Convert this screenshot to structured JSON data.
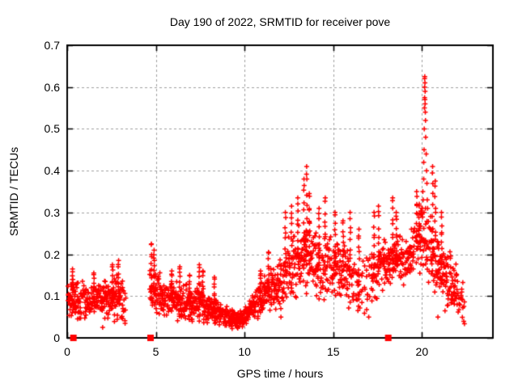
{
  "figure": {
    "title": "Day 190 of 2022, SRMTID for receiver pove",
    "xlabel": "GPS time / hours",
    "ylabel": "SRMTID / TECUs"
  },
  "chart_data": {
    "type": "scatter",
    "title": "Day 190 of 2022, SRMTID for receiver pove",
    "xlabel": "GPS time / hours",
    "ylabel": "SRMTID / TECUs",
    "xlim": [
      0,
      24
    ],
    "ylim": [
      0,
      0.7
    ],
    "xticks": [
      0,
      5,
      10,
      15,
      20
    ],
    "yticks": [
      0,
      0.1,
      0.2,
      0.3,
      0.4,
      0.5,
      0.6,
      0.7
    ],
    "grid": true,
    "legend": "none",
    "colors": {
      "marker": "#ff0000",
      "grid": "#a0a0a0",
      "axis": "#000000",
      "text": "#000000"
    },
    "marker": {
      "shape": "plus",
      "size": 7
    },
    "baseline_markers": {
      "shape": "square",
      "size": 8,
      "y": 0,
      "x": [
        0.35,
        4.7,
        18.1
      ]
    },
    "series_name": "SRMTID",
    "seed": 42,
    "sample_step_hours": 0.018,
    "extra_point_prob": 0.5,
    "coverage": [
      [
        0.05,
        3.3
      ],
      [
        4.65,
        22.45
      ]
    ],
    "envelope_keypoints": [
      [
        0.05,
        0.095,
        0.055,
        1
      ],
      [
        0.6,
        0.09,
        0.05,
        1
      ],
      [
        1.2,
        0.085,
        0.05,
        0.9
      ],
      [
        1.8,
        0.09,
        0.055,
        0.9
      ],
      [
        2.4,
        0.095,
        0.06,
        1
      ],
      [
        2.9,
        0.09,
        0.065,
        1
      ],
      [
        3.3,
        0.08,
        0.05,
        0.7
      ],
      [
        4.65,
        0.12,
        0.08,
        1
      ],
      [
        5.0,
        0.115,
        0.07,
        1
      ],
      [
        5.5,
        0.1,
        0.055,
        1
      ],
      [
        6.0,
        0.09,
        0.05,
        1
      ],
      [
        6.5,
        0.085,
        0.05,
        1
      ],
      [
        7.0,
        0.078,
        0.045,
        1
      ],
      [
        7.5,
        0.082,
        0.05,
        1
      ],
      [
        8.0,
        0.07,
        0.04,
        1
      ],
      [
        8.5,
        0.063,
        0.035,
        1
      ],
      [
        9.0,
        0.052,
        0.028,
        1
      ],
      [
        9.5,
        0.042,
        0.022,
        1
      ],
      [
        9.9,
        0.048,
        0.025,
        1
      ],
      [
        10.3,
        0.065,
        0.035,
        1
      ],
      [
        10.8,
        0.09,
        0.05,
        1
      ],
      [
        11.3,
        0.11,
        0.055,
        1
      ],
      [
        11.8,
        0.12,
        0.06,
        1
      ],
      [
        12.2,
        0.14,
        0.075,
        1
      ],
      [
        12.6,
        0.17,
        0.09,
        1
      ],
      [
        13.0,
        0.19,
        0.1,
        1
      ],
      [
        13.4,
        0.21,
        0.11,
        1
      ],
      [
        13.8,
        0.19,
        0.1,
        1
      ],
      [
        14.2,
        0.17,
        0.09,
        1
      ],
      [
        14.7,
        0.17,
        0.085,
        1
      ],
      [
        15.2,
        0.165,
        0.085,
        1
      ],
      [
        15.7,
        0.155,
        0.085,
        0.9
      ],
      [
        16.2,
        0.13,
        0.075,
        0.7
      ],
      [
        16.7,
        0.12,
        0.07,
        0.6
      ],
      [
        17.2,
        0.15,
        0.08,
        0.8
      ],
      [
        17.7,
        0.17,
        0.08,
        0.9
      ],
      [
        18.1,
        0.185,
        0.07,
        1
      ],
      [
        18.6,
        0.19,
        0.07,
        1
      ],
      [
        19.1,
        0.185,
        0.06,
        0.9
      ],
      [
        19.6,
        0.22,
        0.07,
        0.8
      ],
      [
        20.0,
        0.23,
        0.09,
        0.8
      ],
      [
        20.4,
        0.22,
        0.1,
        1
      ],
      [
        20.8,
        0.19,
        0.1,
        1
      ],
      [
        21.2,
        0.16,
        0.08,
        1
      ],
      [
        21.6,
        0.14,
        0.075,
        1
      ],
      [
        21.9,
        0.115,
        0.07,
        0.9
      ],
      [
        22.2,
        0.09,
        0.06,
        0.7
      ],
      [
        22.45,
        0.08,
        0.05,
        0.5
      ]
    ],
    "streaks": [
      [
        0.3,
        0.165
      ],
      [
        1.5,
        0.155
      ],
      [
        2.55,
        0.175
      ],
      [
        2.9,
        0.185
      ],
      [
        4.75,
        0.225
      ],
      [
        4.9,
        0.21
      ],
      [
        5.9,
        0.16
      ],
      [
        6.35,
        0.17
      ],
      [
        6.9,
        0.15
      ],
      [
        7.45,
        0.175
      ],
      [
        7.65,
        0.16
      ],
      [
        8.3,
        0.145
      ],
      [
        10.9,
        0.16
      ],
      [
        11.35,
        0.205
      ],
      [
        12.3,
        0.3
      ],
      [
        12.65,
        0.315
      ],
      [
        13.0,
        0.335
      ],
      [
        13.35,
        0.38
      ],
      [
        13.5,
        0.41
      ],
      [
        13.65,
        0.345
      ],
      [
        14.2,
        0.31
      ],
      [
        14.55,
        0.335
      ],
      [
        15.1,
        0.3
      ],
      [
        15.55,
        0.28
      ],
      [
        15.95,
        0.3
      ],
      [
        16.45,
        0.26
      ],
      [
        17.3,
        0.3
      ],
      [
        17.55,
        0.315
      ],
      [
        18.35,
        0.335
      ],
      [
        18.55,
        0.3
      ],
      [
        19.7,
        0.35
      ],
      [
        19.85,
        0.32
      ],
      [
        20.6,
        0.41
      ],
      [
        20.75,
        0.375
      ],
      [
        21.1,
        0.3
      ]
    ],
    "spike_points": [
      [
        20.02,
        0.31
      ],
      [
        20.05,
        0.35
      ],
      [
        20.07,
        0.33
      ],
      [
        20.1,
        0.38
      ],
      [
        20.1,
        0.42
      ],
      [
        20.12,
        0.45
      ],
      [
        20.13,
        0.5
      ],
      [
        20.14,
        0.55
      ],
      [
        20.15,
        0.575
      ],
      [
        20.15,
        0.6
      ],
      [
        20.16,
        0.625
      ],
      [
        20.17,
        0.61
      ],
      [
        20.17,
        0.57
      ],
      [
        20.18,
        0.59
      ],
      [
        20.19,
        0.54
      ],
      [
        20.2,
        0.52
      ],
      [
        20.21,
        0.48
      ],
      [
        20.24,
        0.44
      ],
      [
        20.26,
        0.4
      ],
      [
        20.28,
        0.37
      ],
      [
        20.3,
        0.33
      ],
      [
        20.32,
        0.31
      ],
      [
        20.15,
        0.62
      ],
      [
        20.18,
        0.56
      ],
      [
        20.12,
        0.3
      ],
      [
        20.2,
        0.31
      ]
    ],
    "low_outliers": [
      [
        2.0,
        0.025
      ],
      [
        8.9,
        0.03
      ],
      [
        9.3,
        0.022
      ],
      [
        9.6,
        0.03
      ],
      [
        10.1,
        0.035
      ],
      [
        12.05,
        0.05
      ],
      [
        17.0,
        0.05
      ],
      [
        20.9,
        0.05
      ],
      [
        21.3,
        0.065
      ]
    ]
  }
}
